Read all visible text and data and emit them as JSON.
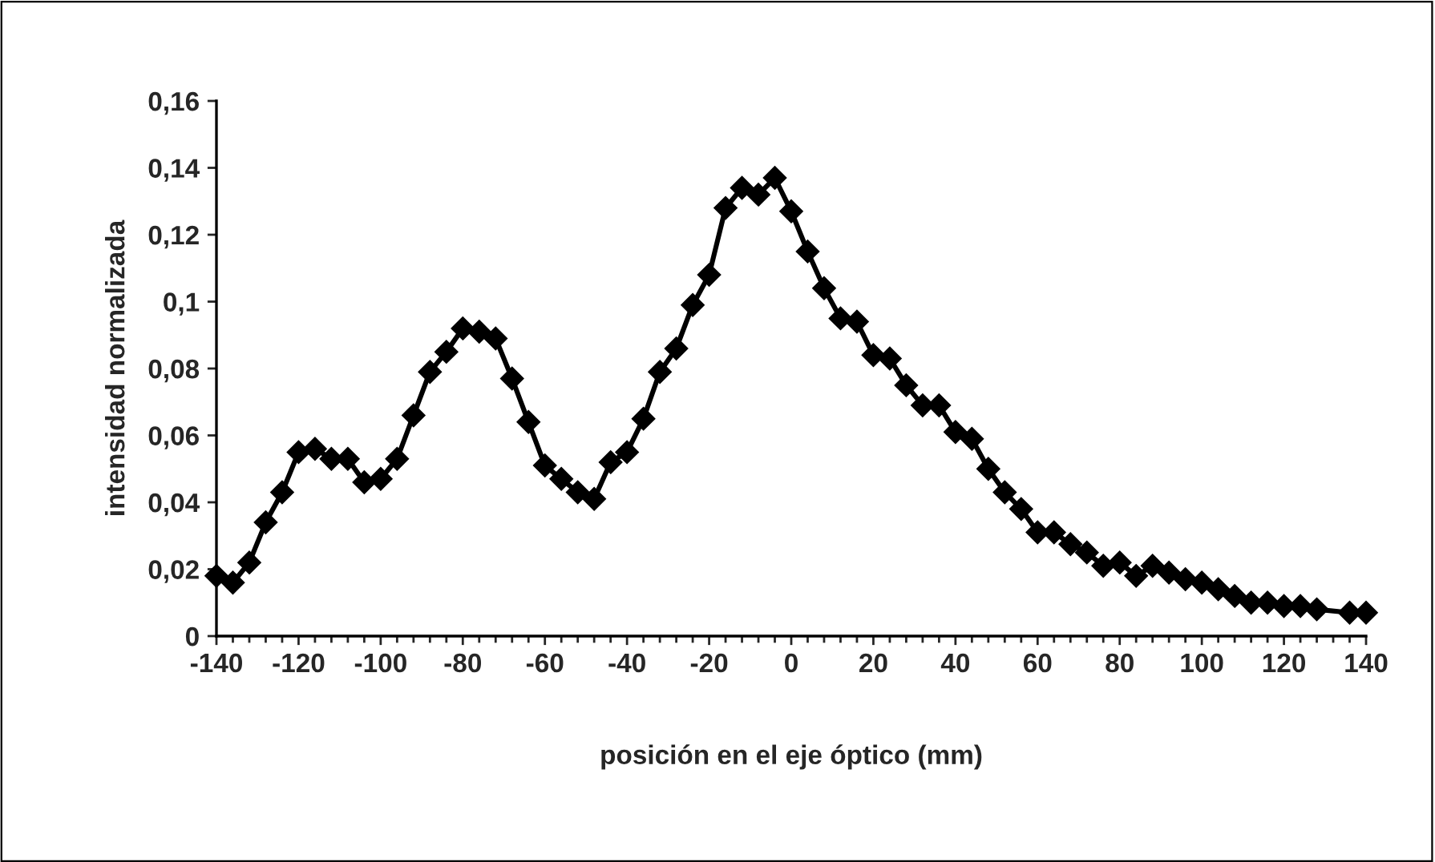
{
  "chart_data": {
    "type": "line",
    "xlabel": "posición en el eje óptico (mm)",
    "ylabel": "intensidad normalizada",
    "marker": "diamond",
    "line_style": "solid",
    "grid": false,
    "legend": false,
    "series": [
      {
        "color": "#000000",
        "x": [
          -140,
          -136,
          -132,
          -128,
          -124,
          -120,
          -116,
          -112,
          -108,
          -104,
          -100,
          -96,
          -92,
          -88,
          -84,
          -80,
          -76,
          -72,
          -68,
          -64,
          -60,
          -56,
          -52,
          -48,
          -44,
          -40,
          -36,
          -32,
          -28,
          -24,
          -20,
          -16,
          -12,
          -8,
          -4,
          0,
          4,
          8,
          12,
          16,
          20,
          24,
          28,
          32,
          36,
          40,
          44,
          48,
          52,
          56,
          60,
          64,
          68,
          72,
          76,
          80,
          84,
          88,
          92,
          96,
          100,
          104,
          108,
          112,
          116,
          120,
          124,
          128,
          136,
          140
        ],
        "values": [
          0.018,
          0.016,
          0.022,
          0.034,
          0.043,
          0.055,
          0.056,
          0.053,
          0.053,
          0.046,
          0.047,
          0.053,
          0.066,
          0.079,
          0.085,
          0.092,
          0.091,
          0.089,
          0.077,
          0.064,
          0.051,
          0.047,
          0.043,
          0.041,
          0.052,
          0.055,
          0.065,
          0.079,
          0.086,
          0.099,
          0.108,
          0.128,
          0.134,
          0.132,
          0.137,
          0.127,
          0.115,
          0.104,
          0.095,
          0.094,
          0.084,
          0.083,
          0.075,
          0.069,
          0.069,
          0.061,
          0.059,
          0.05,
          0.043,
          0.038,
          0.031,
          0.031,
          0.0275,
          0.025,
          0.021,
          0.022,
          0.018,
          0.021,
          0.019,
          0.017,
          0.016,
          0.014,
          0.012,
          0.01,
          0.01,
          0.009,
          0.009,
          0.008,
          0.007,
          0.007
        ]
      }
    ],
    "xlim": [
      -140,
      140
    ],
    "xticks": [
      -140,
      -120,
      -100,
      -80,
      -60,
      -40,
      -20,
      0,
      20,
      40,
      60,
      80,
      100,
      120,
      140
    ],
    "ylim": [
      0,
      0.16
    ],
    "yticks": [
      {
        "value": 0,
        "label": "0"
      },
      {
        "value": 0.02,
        "label": "0,02"
      },
      {
        "value": 0.04,
        "label": "0,04"
      },
      {
        "value": 0.06,
        "label": "0,06"
      },
      {
        "value": 0.08,
        "label": "0,08"
      },
      {
        "value": 0.1,
        "label": "0,1"
      },
      {
        "value": 0.12,
        "label": "0,12"
      },
      {
        "value": 0.14,
        "label": "0,14"
      },
      {
        "value": 0.16,
        "label": "0,16"
      }
    ]
  }
}
